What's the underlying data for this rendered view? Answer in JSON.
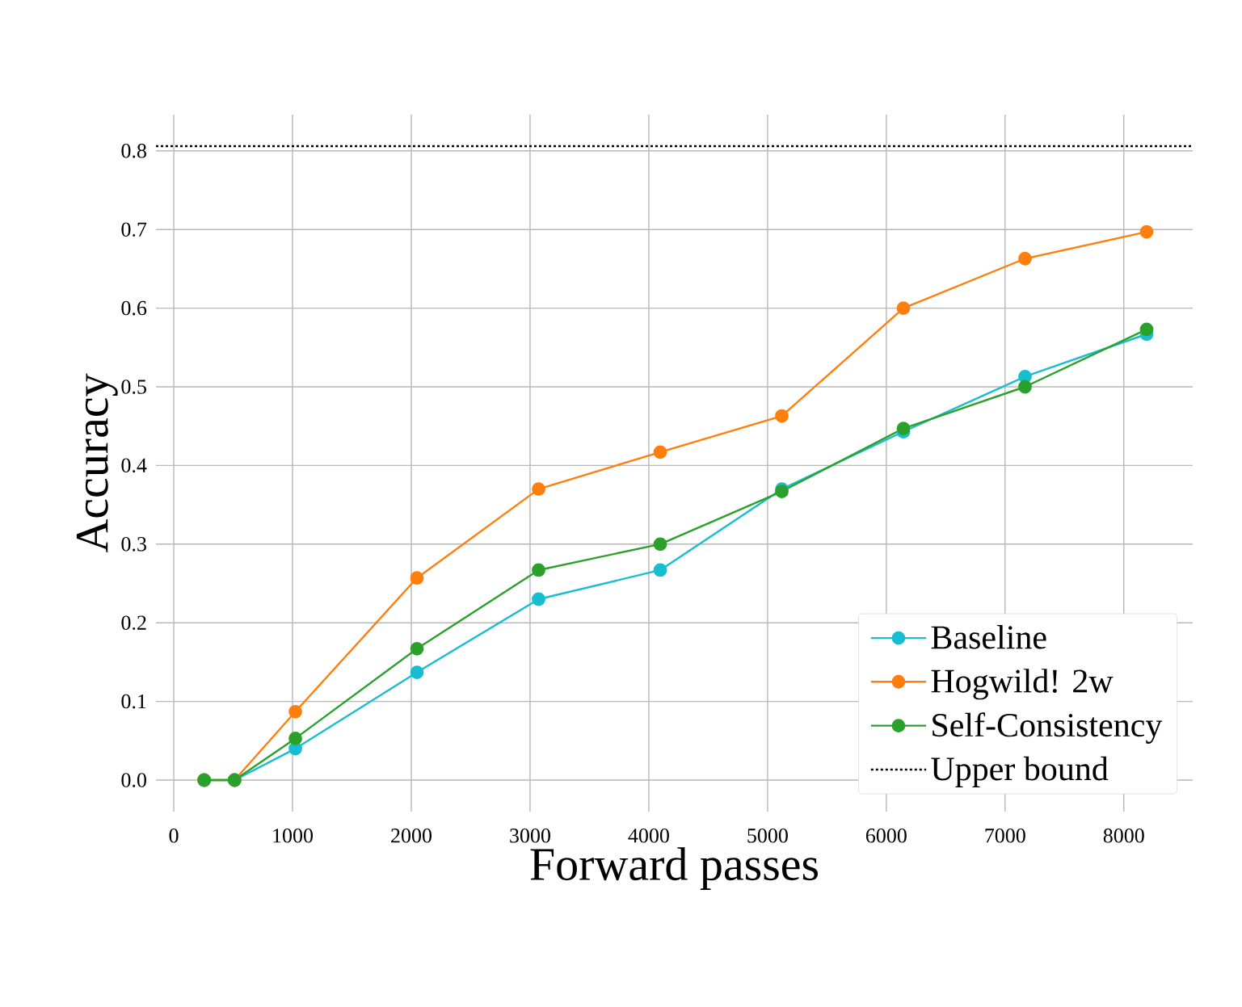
{
  "chart_data": {
    "type": "line",
    "xlabel": "Forward passes",
    "ylabel": "Accuracy",
    "x": [
      256,
      512,
      1024,
      2048,
      3072,
      4096,
      5120,
      6144,
      7168,
      8192
    ],
    "series": [
      {
        "name": "Baseline",
        "color": "#17becf",
        "values": [
          0,
          0,
          0.04,
          0.137,
          0.23,
          0.267,
          0.37,
          0.443,
          0.513,
          0.567
        ]
      },
      {
        "name": "Hogwild! 2w",
        "color": "#ff7f0e",
        "values": [
          0,
          0,
          0.087,
          0.257,
          0.37,
          0.417,
          0.463,
          0.6,
          0.663,
          0.697
        ]
      },
      {
        "name": "Self-Consistency",
        "color": "#2ca02c",
        "values": [
          0,
          0,
          0.053,
          0.167,
          0.267,
          0.3,
          0.367,
          0.447,
          0.5,
          0.573
        ]
      }
    ],
    "ref_lines": [
      {
        "axis": "y",
        "value": 0.806,
        "label": "Upper bound",
        "color": "#000000",
        "line_style": "dotted"
      }
    ],
    "xlim": [
      -150,
      8580
    ],
    "ylim": [
      -0.04,
      0.846
    ],
    "xticks": [
      0,
      1000,
      2000,
      3000,
      4000,
      5000,
      6000,
      7000,
      8000
    ],
    "yticks": [
      {
        "value": 0,
        "label": "0.0"
      },
      0.1,
      0.2,
      0.3,
      0.4,
      0.5,
      0.6,
      0.7,
      0.8
    ],
    "grid": true,
    "legend": "bottom right",
    "marker": "circle",
    "line_style": "solid"
  }
}
